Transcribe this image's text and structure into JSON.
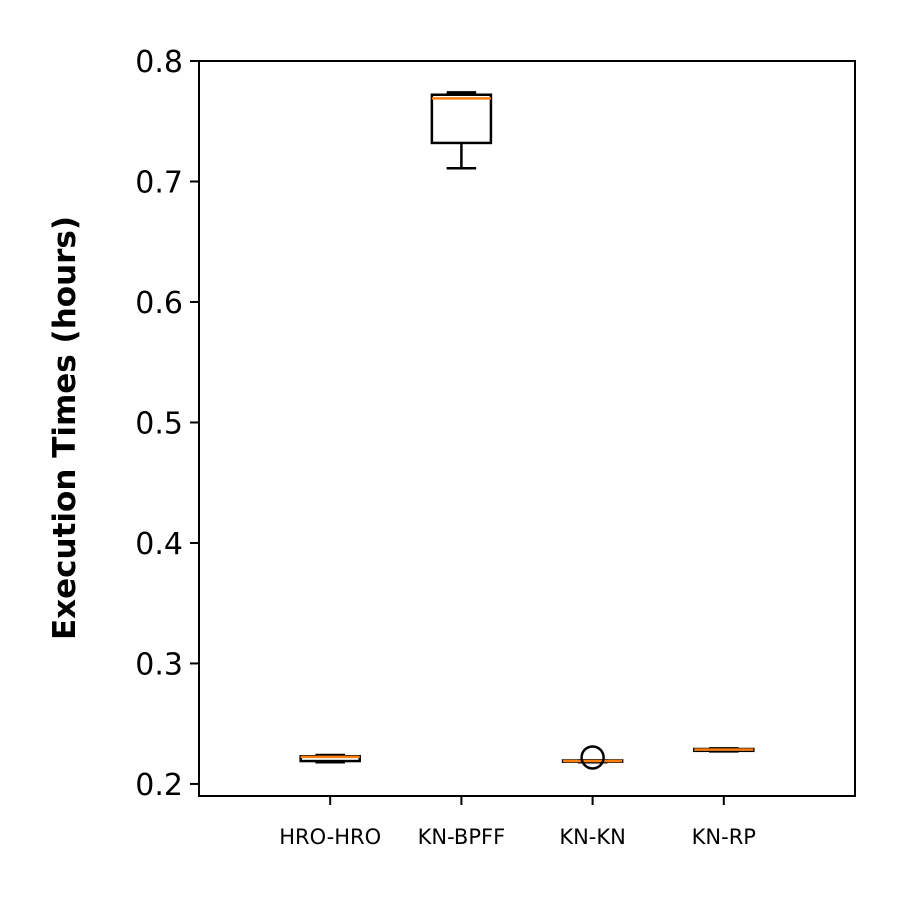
{
  "chart_data": {
    "type": "boxplot",
    "title": "",
    "xlabel": "",
    "ylabel": "Execution Times (hours)",
    "ylim": [
      0.19,
      0.8
    ],
    "yticks": [
      0.2,
      0.3,
      0.4,
      0.5,
      0.6,
      0.7,
      0.8
    ],
    "ytick_labels": [
      "0.2",
      "0.3",
      "0.4",
      "0.5",
      "0.6",
      "0.7",
      "0.8"
    ],
    "grid": false,
    "categories": [
      "HRO-HRO",
      "KN-BPFF",
      "KN-KN",
      "KN-RP"
    ],
    "boxes": [
      {
        "category": "HRO-HRO",
        "whisker_low": 0.218,
        "q1": 0.219,
        "median": 0.2225,
        "q3": 0.223,
        "whisker_high": 0.224,
        "outliers": []
      },
      {
        "category": "KN-BPFF",
        "whisker_low": 0.711,
        "q1": 0.732,
        "median": 0.769,
        "q3": 0.772,
        "whisker_high": 0.774,
        "outliers": []
      },
      {
        "category": "KN-KN",
        "whisker_low": 0.218,
        "q1": 0.2185,
        "median": 0.219,
        "q3": 0.2195,
        "whisker_high": 0.2195,
        "outliers": [
          0.222
        ]
      },
      {
        "category": "KN-RP",
        "whisker_low": 0.227,
        "q1": 0.2275,
        "median": 0.2285,
        "q3": 0.229,
        "whisker_high": 0.2295,
        "outliers": []
      }
    ],
    "colors": {
      "box": "#000000",
      "median": "#ff7f0e",
      "background": "#ffffff"
    }
  }
}
